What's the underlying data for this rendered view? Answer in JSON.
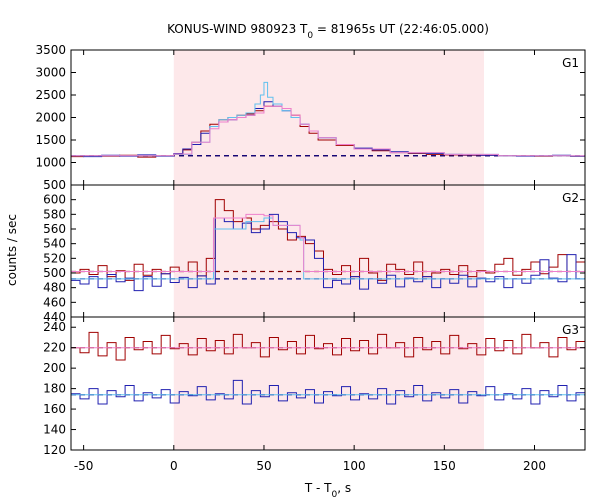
{
  "chart_data": {
    "type": "line",
    "title": "KONUS-WIND 980923 T",
    "title_sub": "0",
    "title_rest": " = 81965s UT (22:46:05.000)",
    "xlabel": "T - T",
    "xlabel_sub": "0",
    "xlabel_rest": ", s",
    "ylabel": "counts / sec",
    "xlim": [
      -57,
      228
    ],
    "xticks": [
      "-50",
      "0",
      "50",
      "100",
      "150",
      "200"
    ],
    "xtick_values": [
      -50,
      0,
      50,
      100,
      150,
      200
    ],
    "highlight_interval": [
      0,
      172
    ],
    "colors": {
      "red": "#a00000",
      "blue": "#2020b0",
      "light_blue": "#60c0ee",
      "pink": "#ee80cc",
      "background_dark_red": "#800000",
      "background_dark_blue": "#000080",
      "shade": "#fde8ea"
    },
    "panels": [
      {
        "label": "G1",
        "ylim": [
          500,
          3500
        ],
        "yticks": [
          "3500",
          "3000",
          "2500",
          "2000",
          "1500",
          "1000",
          "500"
        ],
        "ytick_values": [
          3500,
          3000,
          2500,
          2000,
          1500,
          1000,
          500
        ],
        "background": {
          "red": 1150,
          "blue": 1150
        },
        "series": [
          {
            "color": "red",
            "x": [
              -57,
              -50,
              -40,
              -30,
              -20,
              -10,
              0,
              5,
              10,
              15,
              20,
              25,
              30,
              35,
              40,
              45,
              50,
              55,
              60,
              65,
              70,
              75,
              80,
              90,
              100,
              110,
              120,
              130,
              140,
              150,
              160,
              170,
              180,
              190,
              200,
              210,
              220,
              228
            ],
            "y": [
              1130,
              1150,
              1140,
              1160,
              1120,
              1150,
              1180,
              1280,
              1450,
              1700,
              1850,
              1950,
              2000,
              2050,
              2080,
              2150,
              2250,
              2300,
              2200,
              2050,
              1800,
              1650,
              1500,
              1380,
              1300,
              1260,
              1220,
              1200,
              1180,
              1170,
              1160,
              1160,
              1150,
              1150,
              1140,
              1150,
              1140,
              1150
            ]
          },
          {
            "color": "blue",
            "x": [
              -57,
              -50,
              -40,
              -30,
              -20,
              -10,
              0,
              5,
              10,
              15,
              20,
              25,
              30,
              35,
              40,
              45,
              50,
              55,
              60,
              65,
              70,
              75,
              80,
              90,
              100,
              110,
              120,
              130,
              140,
              150,
              160,
              170,
              180,
              190,
              200,
              210,
              220,
              228
            ],
            "y": [
              1150,
              1130,
              1160,
              1140,
              1170,
              1140,
              1200,
              1300,
              1400,
              1650,
              1800,
              1900,
              1950,
              2000,
              2050,
              2200,
              2350,
              2250,
              2150,
              2000,
              1850,
              1700,
              1550,
              1400,
              1320,
              1280,
              1240,
              1210,
              1200,
              1180,
              1170,
              1160,
              1150,
              1140,
              1150,
              1160,
              1140,
              1150
            ]
          },
          {
            "color": "light_blue",
            "x": [
              -57,
              0,
              10,
              20,
              25,
              30,
              35,
              40,
              45,
              48,
              50,
              52,
              55,
              60,
              65,
              70,
              75,
              80,
              90,
              100,
              120,
              150,
              180,
              228
            ],
            "y": [
              1150,
              1180,
              1450,
              1800,
              1950,
              2000,
              2050,
              2100,
              2300,
              2500,
              2780,
              2450,
              2300,
              2150,
              2000,
              1850,
              1700,
              1550,
              1400,
              1300,
              1220,
              1180,
              1150,
              1150
            ]
          },
          {
            "color": "pink",
            "x": [
              -57,
              0,
              10,
              20,
              25,
              30,
              35,
              40,
              45,
              50,
              55,
              60,
              65,
              70,
              75,
              80,
              90,
              100,
              120,
              150,
              180,
              228
            ],
            "y": [
              1150,
              1190,
              1450,
              1750,
              1900,
              1950,
              2000,
              2050,
              2100,
              2250,
              2250,
              2200,
              2050,
              1850,
              1700,
              1550,
              1400,
              1300,
              1220,
              1180,
              1150,
              1150
            ]
          }
        ]
      },
      {
        "label": "G2",
        "ylim": [
          440,
          620
        ],
        "yticks": [
          "600",
          "580",
          "560",
          "540",
          "520",
          "500",
          "480",
          "460",
          "440"
        ],
        "ytick_values": [
          600,
          580,
          560,
          540,
          520,
          500,
          480,
          460,
          440
        ],
        "background": {
          "red": 502,
          "blue": 492
        },
        "series": [
          {
            "color": "red",
            "x": [
              -57,
              -52,
              -47,
              -42,
              -37,
              -32,
              -27,
              -22,
              -17,
              -12,
              -7,
              -2,
              3,
              8,
              13,
              18,
              23,
              28,
              33,
              38,
              43,
              48,
              53,
              58,
              63,
              68,
              73,
              78,
              83,
              88,
              93,
              98,
              103,
              108,
              113,
              118,
              123,
              128,
              133,
              138,
              143,
              148,
              153,
              158,
              163,
              168,
              173,
              178,
              183,
              188,
              193,
              198,
              203,
              208,
              213,
              218,
              223,
              228
            ],
            "y": [
              500,
              505,
              498,
              510,
              495,
              503,
              490,
              512,
              497,
              505,
              499,
              508,
              502,
              515,
              496,
              520,
              600,
              585,
              570,
              575,
              560,
              565,
              570,
              560,
              545,
              550,
              540,
              530,
              505,
              498,
              510,
              495,
              520,
              500,
              490,
              512,
              505,
              498,
              515,
              495,
              500,
              505,
              498,
              510,
              495,
              503,
              500,
              512,
              520,
              497,
              505,
              515,
              499,
              508,
              525,
              502,
              515,
              510
            ]
          },
          {
            "color": "blue",
            "x": [
              -57,
              -52,
              -47,
              -42,
              -37,
              -32,
              -27,
              -22,
              -17,
              -12,
              -7,
              -2,
              3,
              8,
              13,
              18,
              23,
              28,
              33,
              38,
              43,
              48,
              53,
              58,
              63,
              68,
              73,
              78,
              83,
              88,
              93,
              98,
              103,
              108,
              113,
              118,
              123,
              128,
              133,
              138,
              143,
              148,
              153,
              158,
              163,
              168,
              173,
              178,
              183,
              188,
              193,
              198,
              203,
              208,
              213,
              218,
              223,
              228
            ],
            "y": [
              490,
              485,
              495,
              480,
              498,
              488,
              493,
              476,
              495,
              482,
              499,
              487,
              494,
              480,
              496,
              485,
              575,
              570,
              560,
              568,
              555,
              560,
              580,
              570,
              555,
              548,
              545,
              520,
              480,
              490,
              485,
              495,
              478,
              492,
              486,
              497,
              481,
              493,
              488,
              495,
              480,
              492,
              486,
              497,
              481,
              493,
              488,
              495,
              480,
              492,
              486,
              497,
              518,
              493,
              488,
              525,
              492,
              495
            ]
          },
          {
            "color": "light_blue",
            "x": [
              -57,
              0,
              20,
              22,
              40,
              50,
              55,
              70,
              72,
              228
            ],
            "y": [
              492,
              492,
              492,
              560,
              570,
              575,
              565,
              545,
              492,
              492
            ]
          },
          {
            "color": "pink",
            "x": [
              -57,
              0,
              20,
              22,
              40,
              50,
              55,
              70,
              72,
              228
            ],
            "y": [
              502,
              502,
              502,
              575,
              580,
              578,
              565,
              548,
              502,
              502
            ]
          }
        ]
      },
      {
        "label": "G3",
        "ylim": [
          120,
          250
        ],
        "yticks": [
          "240",
          "220",
          "200",
          "180",
          "160",
          "140",
          "120"
        ],
        "ytick_values": [
          240,
          220,
          200,
          180,
          160,
          140,
          120
        ],
        "background": {
          "red": 220,
          "blue": 174
        },
        "series": [
          {
            "color": "red",
            "x": [
              -57,
              -52,
              -47,
              -42,
              -37,
              -32,
              -27,
              -22,
              -17,
              -12,
              -7,
              -2,
              3,
              8,
              13,
              18,
              23,
              28,
              33,
              38,
              43,
              48,
              53,
              58,
              63,
              68,
              73,
              78,
              83,
              88,
              93,
              98,
              103,
              108,
              113,
              118,
              123,
              128,
              133,
              138,
              143,
              148,
              153,
              158,
              163,
              168,
              173,
              178,
              183,
              188,
              193,
              198,
              203,
              208,
              213,
              218,
              223,
              228
            ],
            "y": [
              220,
              215,
              235,
              212,
              225,
              208,
              230,
              218,
              226,
              214,
              232,
              219,
              224,
              213,
              229,
              217,
              227,
              214,
              233,
              220,
              225,
              211,
              230,
              218,
              226,
              214,
              232,
              219,
              224,
              213,
              229,
              217,
              227,
              214,
              233,
              220,
              225,
              211,
              230,
              218,
              226,
              214,
              232,
              219,
              224,
              213,
              229,
              217,
              227,
              214,
              233,
              220,
              225,
              211,
              230,
              218,
              226,
              220
            ]
          },
          {
            "color": "blue",
            "x": [
              -57,
              -52,
              -47,
              -42,
              -37,
              -32,
              -27,
              -22,
              -17,
              -12,
              -7,
              -2,
              3,
              8,
              13,
              18,
              23,
              28,
              33,
              38,
              43,
              48,
              53,
              58,
              63,
              68,
              73,
              78,
              83,
              88,
              93,
              98,
              103,
              108,
              113,
              118,
              123,
              128,
              133,
              138,
              143,
              148,
              153,
              158,
              163,
              168,
              173,
              178,
              183,
              188,
              193,
              198,
              203,
              208,
              213,
              218,
              223,
              228
            ],
            "y": [
              175,
              170,
              180,
              165,
              178,
              172,
              183,
              168,
              176,
              171,
              179,
              166,
              177,
              173,
              182,
              169,
              175,
              170,
              188,
              165,
              178,
              172,
              183,
              168,
              176,
              171,
              179,
              166,
              177,
              173,
              182,
              169,
              175,
              170,
              180,
              165,
              178,
              172,
              183,
              168,
              176,
              171,
              179,
              166,
              177,
              173,
              182,
              169,
              175,
              170,
              180,
              165,
              178,
              172,
              183,
              168,
              176,
              174
            ]
          },
          {
            "color": "light_blue",
            "x": [
              -57,
              228
            ],
            "y": [
              174,
              174
            ]
          },
          {
            "color": "pink",
            "x": [
              -57,
              228
            ],
            "y": [
              220,
              220
            ]
          }
        ]
      }
    ]
  }
}
